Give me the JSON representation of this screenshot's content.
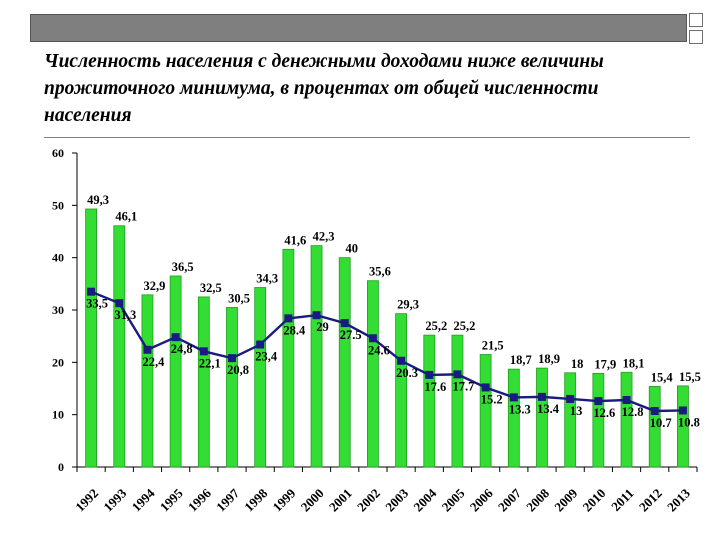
{
  "slide": {
    "title": "Численность населения с денежными доходами ниже величины прожиточного минимума,  в процентах от общей численности населения"
  },
  "colors": {
    "bar_fill": "#33dd33",
    "bar_stroke": "#1f9f1f",
    "line": "#1a1a80",
    "marker": "#1a1a80",
    "header_bar": "#7f7f7f"
  },
  "chart_data": {
    "type": "bar",
    "title": "",
    "xlabel": "",
    "ylabel": "",
    "ylim": [
      0,
      60
    ],
    "yticks": [
      0,
      10,
      20,
      30,
      40,
      50,
      60
    ],
    "grid": false,
    "legend": "none",
    "categories": [
      "1992",
      "1993",
      "1994",
      "1995",
      "1996",
      "1997",
      "1998",
      "1999",
      "2000",
      "2001",
      "2002",
      "2003",
      "2004",
      "2005",
      "2006",
      "2007",
      "2008",
      "2009",
      "2010",
      "2011",
      "2012",
      "2013"
    ],
    "series": [
      {
        "type": "bar",
        "values": [
          49.3,
          46.1,
          32.9,
          36.5,
          32.5,
          30.5,
          34.3,
          41.6,
          42.3,
          40,
          35.6,
          29.3,
          25.2,
          25.2,
          21.5,
          18.7,
          18.9,
          18,
          17.9,
          18.1,
          15.4,
          15.5
        ],
        "labels": [
          "49,3",
          "46,1",
          "32,9",
          "36,5",
          "32,5",
          "30,5",
          "34,3",
          "41,6",
          "42,3",
          "40",
          "35,6",
          "29,3",
          "25,2",
          "25,2",
          "21,5",
          "18,7",
          "18,9",
          "18",
          "17,9",
          "18,1",
          "15,4",
          "15,5"
        ]
      },
      {
        "type": "line",
        "values": [
          33.5,
          31.3,
          22.4,
          24.8,
          22.1,
          20.8,
          23.4,
          28.4,
          29,
          27.5,
          24.6,
          20.3,
          17.6,
          17.7,
          15.2,
          13.3,
          13.4,
          13,
          12.6,
          12.8,
          10.7,
          10.8
        ],
        "labels": [
          "33,5",
          "31,3",
          "22,4",
          "24,8",
          "22,1",
          "20,8",
          "23,4",
          "28.4",
          "29",
          "27.5",
          "24.6",
          "20.3",
          "17.6",
          "17.7",
          "15.2",
          "13.3",
          "13.4",
          "13",
          "12.6",
          "12.8",
          "10.7",
          "10.8"
        ]
      }
    ]
  }
}
